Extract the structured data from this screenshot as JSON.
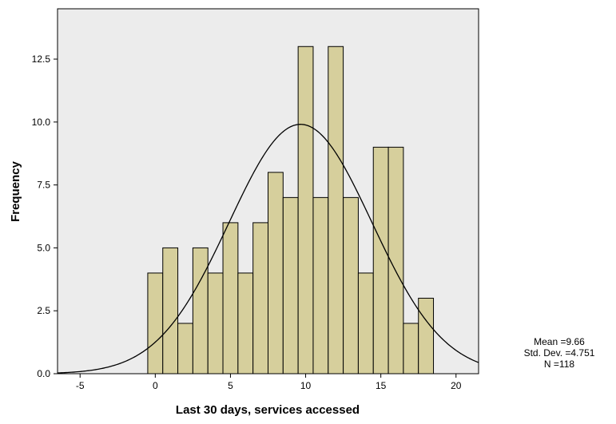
{
  "chart_data": {
    "type": "histogram",
    "xlabel": "Last 30 days, services accessed",
    "ylabel": "Frequency",
    "xlim": [
      -6.5,
      21.5
    ],
    "ylim": [
      0,
      14.5
    ],
    "x_ticks": [
      -5,
      0,
      5,
      10,
      15,
      20
    ],
    "y_ticks": [
      0.0,
      2.5,
      5.0,
      7.5,
      10.0,
      12.5
    ],
    "x_tick_labels": [
      "-5",
      "0",
      "5",
      "10",
      "15",
      "20"
    ],
    "y_tick_labels": [
      "0.0",
      "2.5",
      "5.0",
      "7.5",
      "10.0",
      "12.5"
    ],
    "bin_width": 1,
    "bins": [
      0,
      1,
      2,
      3,
      4,
      5,
      6,
      7,
      8,
      9,
      10,
      11,
      12,
      13,
      14,
      15,
      16,
      17,
      18
    ],
    "frequencies": [
      4,
      5,
      2,
      5,
      4,
      6,
      4,
      6,
      8,
      7,
      13,
      7,
      13,
      7,
      4,
      9,
      9,
      2,
      3
    ],
    "normal_curve": {
      "mean": 9.66,
      "std": 4.751,
      "n": 118
    },
    "plot_background": "#ececec",
    "bar_fill": "#d6cf9c",
    "bar_stroke": "#000000",
    "grid": false
  },
  "stats": {
    "mean": "Mean =9.66",
    "std": "Std. Dev. =4.751",
    "n": "N =118"
  }
}
